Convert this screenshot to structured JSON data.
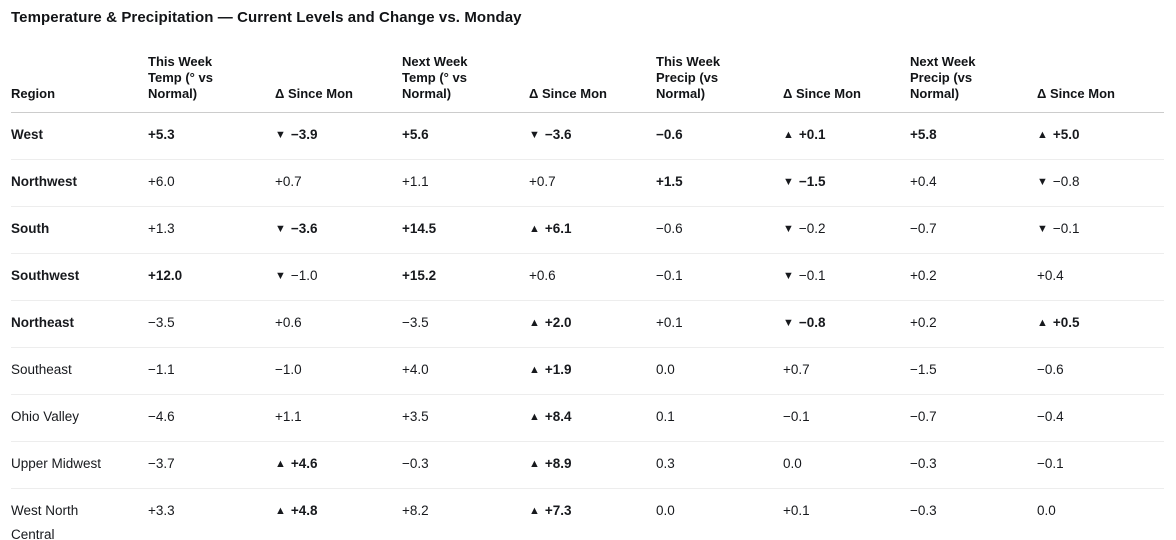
{
  "title": "Temperature & Precipitation — Current Levels and Change vs. Monday",
  "icons": {
    "arrow-up": "▲",
    "arrow-down": "▼"
  },
  "colors": {
    "background": "#ffffff",
    "text": "#17191d",
    "header_border": "#cccccc",
    "row_border": "#ededed"
  },
  "table": {
    "columns": [
      {
        "key": "region",
        "label": "Region"
      },
      {
        "key": "this-week-temp",
        "label": "This Week\nTemp (° vs\nNormal)"
      },
      {
        "key": "delta-since-mon-1",
        "label": "Δ Since Mon"
      },
      {
        "key": "next-week-temp",
        "label": "Next Week\nTemp (° vs\nNormal)"
      },
      {
        "key": "delta-since-mon-2",
        "label": "Δ Since Mon"
      },
      {
        "key": "this-week-precip",
        "label": "This Week\nPrecip (vs\nNormal)"
      },
      {
        "key": "delta-since-mon-3",
        "label": "Δ Since Mon"
      },
      {
        "key": "next-week-precip",
        "label": "Next Week\nPrecip (vs\nNormal)"
      },
      {
        "key": "delta-since-mon-4",
        "label": "Δ Since Mon"
      }
    ],
    "rows": [
      {
        "region": {
          "t": "West",
          "b": true
        },
        "cells": [
          {
            "t": "+5.3",
            "b": true,
            "a": null
          },
          {
            "t": "−3.9",
            "b": true,
            "a": "down"
          },
          {
            "t": "+5.6",
            "b": true,
            "a": null
          },
          {
            "t": "−3.6",
            "b": true,
            "a": "down"
          },
          {
            "t": "−0.6",
            "b": true,
            "a": null
          },
          {
            "t": "+0.1",
            "b": true,
            "a": "up"
          },
          {
            "t": "+5.8",
            "b": true,
            "a": null
          },
          {
            "t": "+5.0",
            "b": true,
            "a": "up"
          }
        ]
      },
      {
        "region": {
          "t": "Northwest",
          "b": true
        },
        "cells": [
          {
            "t": "+6.0",
            "b": false,
            "a": null
          },
          {
            "t": "+0.7",
            "b": false,
            "a": null
          },
          {
            "t": "+1.1",
            "b": false,
            "a": null
          },
          {
            "t": "+0.7",
            "b": false,
            "a": null
          },
          {
            "t": "+1.5",
            "b": true,
            "a": null
          },
          {
            "t": "−1.5",
            "b": true,
            "a": "down"
          },
          {
            "t": "+0.4",
            "b": false,
            "a": null
          },
          {
            "t": "−0.8",
            "b": false,
            "a": "down"
          }
        ]
      },
      {
        "region": {
          "t": "South",
          "b": true
        },
        "cells": [
          {
            "t": "+1.3",
            "b": false,
            "a": null
          },
          {
            "t": "−3.6",
            "b": true,
            "a": "down"
          },
          {
            "t": "+14.5",
            "b": true,
            "a": null
          },
          {
            "t": "+6.1",
            "b": true,
            "a": "up"
          },
          {
            "t": "−0.6",
            "b": false,
            "a": null
          },
          {
            "t": "−0.2",
            "b": false,
            "a": "down"
          },
          {
            "t": "−0.7",
            "b": false,
            "a": null
          },
          {
            "t": "−0.1",
            "b": false,
            "a": "down"
          }
        ]
      },
      {
        "region": {
          "t": "Southwest",
          "b": true
        },
        "cells": [
          {
            "t": "+12.0",
            "b": true,
            "a": null
          },
          {
            "t": "−1.0",
            "b": false,
            "a": "down"
          },
          {
            "t": "+15.2",
            "b": true,
            "a": null
          },
          {
            "t": "+0.6",
            "b": false,
            "a": null
          },
          {
            "t": "−0.1",
            "b": false,
            "a": null
          },
          {
            "t": "−0.1",
            "b": false,
            "a": "down"
          },
          {
            "t": "+0.2",
            "b": false,
            "a": null
          },
          {
            "t": "+0.4",
            "b": false,
            "a": null
          }
        ]
      },
      {
        "region": {
          "t": "Northeast",
          "b": true
        },
        "cells": [
          {
            "t": "−3.5",
            "b": false,
            "a": null
          },
          {
            "t": "+0.6",
            "b": false,
            "a": null
          },
          {
            "t": "−3.5",
            "b": false,
            "a": null
          },
          {
            "t": "+2.0",
            "b": true,
            "a": "up"
          },
          {
            "t": "+0.1",
            "b": false,
            "a": null
          },
          {
            "t": "−0.8",
            "b": true,
            "a": "down"
          },
          {
            "t": "+0.2",
            "b": false,
            "a": null
          },
          {
            "t": "+0.5",
            "b": true,
            "a": "up"
          }
        ]
      },
      {
        "region": {
          "t": "Southeast",
          "b": false
        },
        "cells": [
          {
            "t": "−1.1",
            "b": false,
            "a": null
          },
          {
            "t": "−1.0",
            "b": false,
            "a": null
          },
          {
            "t": "+4.0",
            "b": false,
            "a": null
          },
          {
            "t": "+1.9",
            "b": true,
            "a": "up"
          },
          {
            "t": "0.0",
            "b": false,
            "a": null
          },
          {
            "t": "+0.7",
            "b": false,
            "a": null
          },
          {
            "t": "−1.5",
            "b": false,
            "a": null
          },
          {
            "t": "−0.6",
            "b": false,
            "a": null
          }
        ]
      },
      {
        "region": {
          "t": "Ohio Valley",
          "b": false
        },
        "cells": [
          {
            "t": "−4.6",
            "b": false,
            "a": null
          },
          {
            "t": "+1.1",
            "b": false,
            "a": null
          },
          {
            "t": "+3.5",
            "b": false,
            "a": null
          },
          {
            "t": "+8.4",
            "b": true,
            "a": "up"
          },
          {
            "t": "0.1",
            "b": false,
            "a": null
          },
          {
            "t": "−0.1",
            "b": false,
            "a": null
          },
          {
            "t": "−0.7",
            "b": false,
            "a": null
          },
          {
            "t": "−0.4",
            "b": false,
            "a": null
          }
        ]
      },
      {
        "region": {
          "t": "Upper Midwest",
          "b": false
        },
        "cells": [
          {
            "t": "−3.7",
            "b": false,
            "a": null
          },
          {
            "t": "+4.6",
            "b": true,
            "a": "up"
          },
          {
            "t": "−0.3",
            "b": false,
            "a": null
          },
          {
            "t": "+8.9",
            "b": true,
            "a": "up"
          },
          {
            "t": "0.3",
            "b": false,
            "a": null
          },
          {
            "t": "0.0",
            "b": false,
            "a": null
          },
          {
            "t": "−0.3",
            "b": false,
            "a": null
          },
          {
            "t": "−0.1",
            "b": false,
            "a": null
          }
        ]
      },
      {
        "region": {
          "t": "West North\nCentral",
          "b": false
        },
        "cells": [
          {
            "t": "+3.3",
            "b": false,
            "a": null
          },
          {
            "t": "+4.8",
            "b": true,
            "a": "up"
          },
          {
            "t": "+8.2",
            "b": false,
            "a": null
          },
          {
            "t": "+7.3",
            "b": true,
            "a": "up"
          },
          {
            "t": "0.0",
            "b": false,
            "a": null
          },
          {
            "t": "+0.1",
            "b": false,
            "a": null
          },
          {
            "t": "−0.3",
            "b": false,
            "a": null
          },
          {
            "t": "0.0",
            "b": false,
            "a": null
          }
        ]
      }
    ]
  },
  "chart_data": {
    "type": "table",
    "title": "Temperature & Precipitation — Current Levels and Change vs. Monday",
    "columns": [
      "Region",
      "This Week Temp (° vs Normal)",
      "Δ Since Mon",
      "Next Week Temp (° vs Normal)",
      "Δ Since Mon",
      "This Week Precip (vs Normal)",
      "Δ Since Mon",
      "Next Week Precip (vs Normal)",
      "Δ Since Mon"
    ],
    "rows": [
      [
        "West",
        5.3,
        -3.9,
        5.6,
        -3.6,
        -0.6,
        0.1,
        5.8,
        5.0
      ],
      [
        "Northwest",
        6.0,
        0.7,
        1.1,
        0.7,
        1.5,
        -1.5,
        0.4,
        -0.8
      ],
      [
        "South",
        1.3,
        -3.6,
        14.5,
        6.1,
        -0.6,
        -0.2,
        -0.7,
        -0.1
      ],
      [
        "Southwest",
        12.0,
        -1.0,
        15.2,
        0.6,
        -0.1,
        -0.1,
        0.2,
        0.4
      ],
      [
        "Northeast",
        -3.5,
        0.6,
        -3.5,
        2.0,
        0.1,
        -0.8,
        0.2,
        0.5
      ],
      [
        "Southeast",
        -1.1,
        -1.0,
        4.0,
        1.9,
        0.0,
        0.7,
        -1.5,
        -0.6
      ],
      [
        "Ohio Valley",
        -4.6,
        1.1,
        3.5,
        8.4,
        0.1,
        -0.1,
        -0.7,
        -0.4
      ],
      [
        "Upper Midwest",
        -3.7,
        4.6,
        -0.3,
        8.9,
        0.3,
        0.0,
        -0.3,
        -0.1
      ],
      [
        "West North Central",
        3.3,
        4.8,
        8.2,
        7.3,
        0.0,
        0.1,
        -0.3,
        0.0
      ]
    ],
    "legend_position": "none",
    "notes": "▲/▼ markers appear on selected Δ cells; bold highlights emphasized values"
  }
}
